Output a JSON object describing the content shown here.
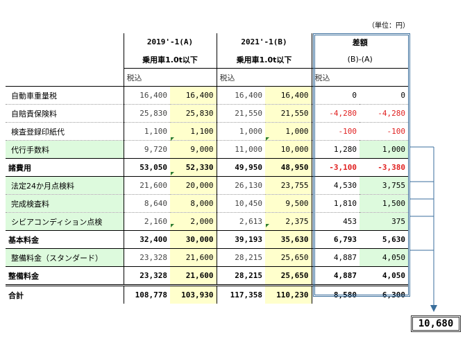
{
  "unit_label": "（単位：円）",
  "header": {
    "col_a_title": "2019'-1(A)",
    "col_b_title": "2021'-1(B)",
    "col_diff_title": "差額",
    "col_a_sub": "乗用車1.0t以下",
    "col_b_sub": "乗用車1.0t以下",
    "col_diff_sub": "(B)-(A)",
    "tax_a": "税込",
    "tax_b": "税込",
    "tax_diff": "税込"
  },
  "rows": [
    {
      "label": "自動車重量税",
      "a1": "16,400",
      "a2": "16,400",
      "b1": "16,400",
      "b2": "16,400",
      "d1": "0",
      "d2": "0"
    },
    {
      "label": "自賠責保険料",
      "a1": "25,830",
      "a2": "25,830",
      "b1": "21,550",
      "b2": "21,550",
      "d1": "-4,280",
      "d2": "-4,280"
    },
    {
      "label": "検査登録印紙代",
      "a1": "1,100",
      "a2": "1,100",
      "b1": "1,000",
      "b2": "1,000",
      "d1": "-100",
      "d2": "-100"
    },
    {
      "label": "代行手数料",
      "a1": "9,720",
      "a2": "9,000",
      "b1": "11,000",
      "b2": "10,000",
      "d1": "1,280",
      "d2": "1,000"
    },
    {
      "label": "諸費用",
      "a1": "53,050",
      "a2": "52,330",
      "b1": "49,950",
      "b2": "48,950",
      "d1": "-3,100",
      "d2": "-3,380"
    },
    {
      "label": "法定24か月点検料",
      "a1": "21,600",
      "a2": "20,000",
      "b1": "26,130",
      "b2": "23,755",
      "d1": "4,530",
      "d2": "3,755"
    },
    {
      "label": "完成検査料",
      "a1": "8,640",
      "a2": "8,000",
      "b1": "10,450",
      "b2": "9,500",
      "d1": "1,810",
      "d2": "1,500"
    },
    {
      "label": "シビアコンディション点検",
      "a1": "2,160",
      "a2": "2,000",
      "b1": "2,613",
      "b2": "2,375",
      "d1": "453",
      "d2": "375"
    },
    {
      "label": "基本料金",
      "a1": "32,400",
      "a2": "30,000",
      "b1": "39,193",
      "b2": "35,630",
      "d1": "6,793",
      "d2": "5,630"
    },
    {
      "label": "整備料金（スタンダード）",
      "a1": "23,328",
      "a2": "21,600",
      "b1": "28,215",
      "b2": "25,650",
      "d1": "4,887",
      "d2": "4,050"
    },
    {
      "label": "整備料金",
      "a1": "23,328",
      "a2": "21,600",
      "b1": "28,215",
      "b2": "25,650",
      "d1": "4,887",
      "d2": "4,050"
    },
    {
      "label": "合計",
      "a1": "108,778",
      "a2": "103,930",
      "b1": "117,358",
      "b2": "110,230",
      "d1": "8,580",
      "d2": "6,300"
    }
  ],
  "total_box_value": "10,680",
  "colors": {
    "yellow": "#ffffcc",
    "green": "#ddfadd",
    "red": "#e02020",
    "frame": "#3a6e9c"
  }
}
